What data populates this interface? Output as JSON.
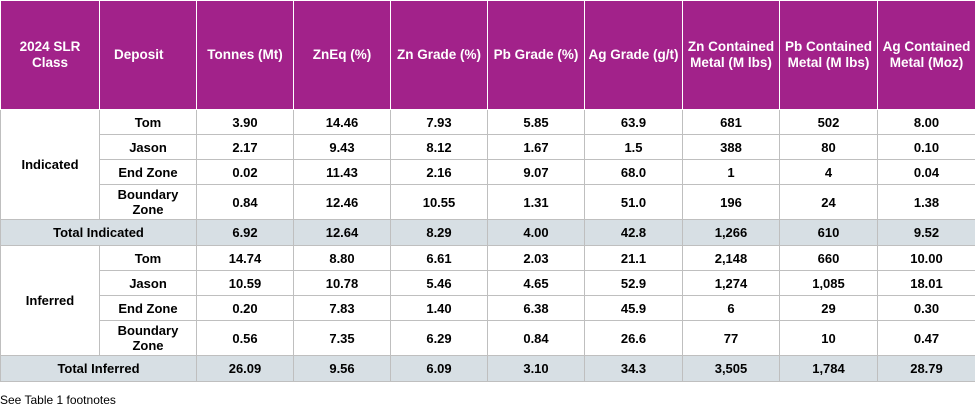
{
  "headers": [
    "2024 SLR Class",
    "Deposit",
    "Tonnes (Mt)",
    "ZnEq (%)",
    "Zn Grade (%)",
    "Pb Grade (%)",
    "Ag Grade (g/t)",
    "Zn Contained Metal (M lbs)",
    "Pb Contained Metal (M lbs)",
    "Ag Contained Metal (Moz)"
  ],
  "indicated": {
    "class": "Indicated",
    "rows": [
      {
        "deposit": "Tom",
        "values": [
          "3.90",
          "14.46",
          "7.93",
          "5.85",
          "63.9",
          "681",
          "502",
          "8.00"
        ]
      },
      {
        "deposit": "Jason",
        "values": [
          "2.17",
          "9.43",
          "8.12",
          "1.67",
          "1.5",
          "388",
          "80",
          "0.10"
        ]
      },
      {
        "deposit": "End Zone",
        "values": [
          "0.02",
          "11.43",
          "2.16",
          "9.07",
          "68.0",
          "1",
          "4",
          "0.04"
        ]
      },
      {
        "deposit": "Boundary Zone",
        "values": [
          "0.84",
          "12.46",
          "10.55",
          "1.31",
          "51.0",
          "196",
          "24",
          "1.38"
        ]
      }
    ],
    "total": {
      "label": "Total Indicated",
      "values": [
        "6.92",
        "12.64",
        "8.29",
        "4.00",
        "42.8",
        "1,266",
        "610",
        "9.52"
      ]
    }
  },
  "inferred": {
    "class": "Inferred",
    "rows": [
      {
        "deposit": "Tom",
        "values": [
          "14.74",
          "8.80",
          "6.61",
          "2.03",
          "21.1",
          "2,148",
          "660",
          "10.00"
        ]
      },
      {
        "deposit": "Jason",
        "values": [
          "10.59",
          "10.78",
          "5.46",
          "4.65",
          "52.9",
          "1,274",
          "1,085",
          "18.01"
        ]
      },
      {
        "deposit": "End Zone",
        "values": [
          "0.20",
          "7.83",
          "1.40",
          "6.38",
          "45.9",
          "6",
          "29",
          "0.30"
        ]
      },
      {
        "deposit": "Boundary Zone",
        "values": [
          "0.56",
          "7.35",
          "6.29",
          "0.84",
          "26.6",
          "77",
          "10",
          "0.47"
        ]
      }
    ],
    "total": {
      "label": "Total Inferred",
      "values": [
        "26.09",
        "9.56",
        "6.09",
        "3.10",
        "34.3",
        "3,505",
        "1,784",
        "28.79"
      ]
    }
  },
  "footnote": "See Table 1 footnotes",
  "colors": {
    "header_bg": "#a2228a",
    "total_bg": "#d7dfe4"
  }
}
